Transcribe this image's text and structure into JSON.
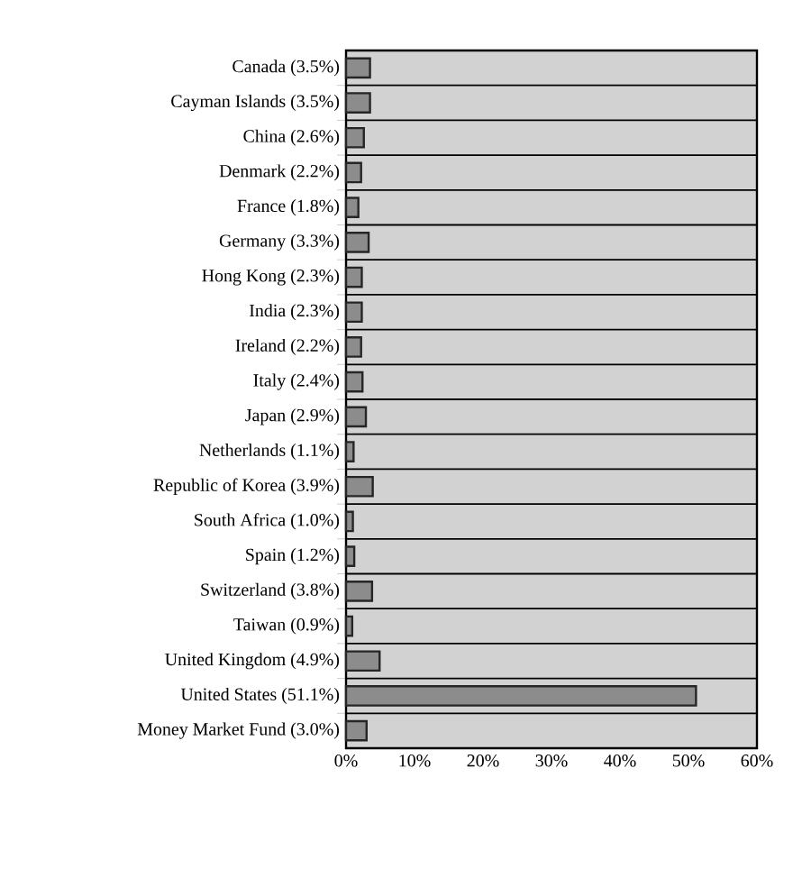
{
  "chart_data": {
    "type": "bar",
    "orientation": "horizontal",
    "categories": [
      "Canada (3.5%)",
      "Cayman Islands (3.5%)",
      "China (2.6%)",
      "Denmark (2.2%)",
      "France (1.8%)",
      "Germany (3.3%)",
      "Hong Kong (2.3%)",
      "India (2.3%)",
      "Ireland (2.2%)",
      "Italy (2.4%)",
      "Japan (2.9%)",
      "Netherlands (1.1%)",
      "Republic of Korea (3.9%)",
      "South Africa (1.0%)",
      "Spain (1.2%)",
      "Switzerland (3.8%)",
      "Taiwan (0.9%)",
      "United Kingdom (4.9%)",
      "United States (51.1%)",
      "Money Market Fund (3.0%)"
    ],
    "values": [
      3.5,
      3.5,
      2.6,
      2.2,
      1.8,
      3.3,
      2.3,
      2.3,
      2.2,
      2.4,
      2.9,
      1.1,
      3.9,
      1.0,
      1.2,
      3.8,
      0.9,
      4.9,
      51.1,
      3.0
    ],
    "color": "#8c8c8c",
    "xlim": [
      0,
      60
    ],
    "xticks": [
      {
        "value": 0,
        "label": "0%"
      },
      {
        "value": 10,
        "label": "10%"
      },
      {
        "value": 20,
        "label": "20%"
      },
      {
        "value": 30,
        "label": "30%"
      },
      {
        "value": 40,
        "label": "40%"
      },
      {
        "value": 50,
        "label": "50%"
      },
      {
        "value": 60,
        "label": "60%"
      }
    ],
    "grid": "y"
  }
}
